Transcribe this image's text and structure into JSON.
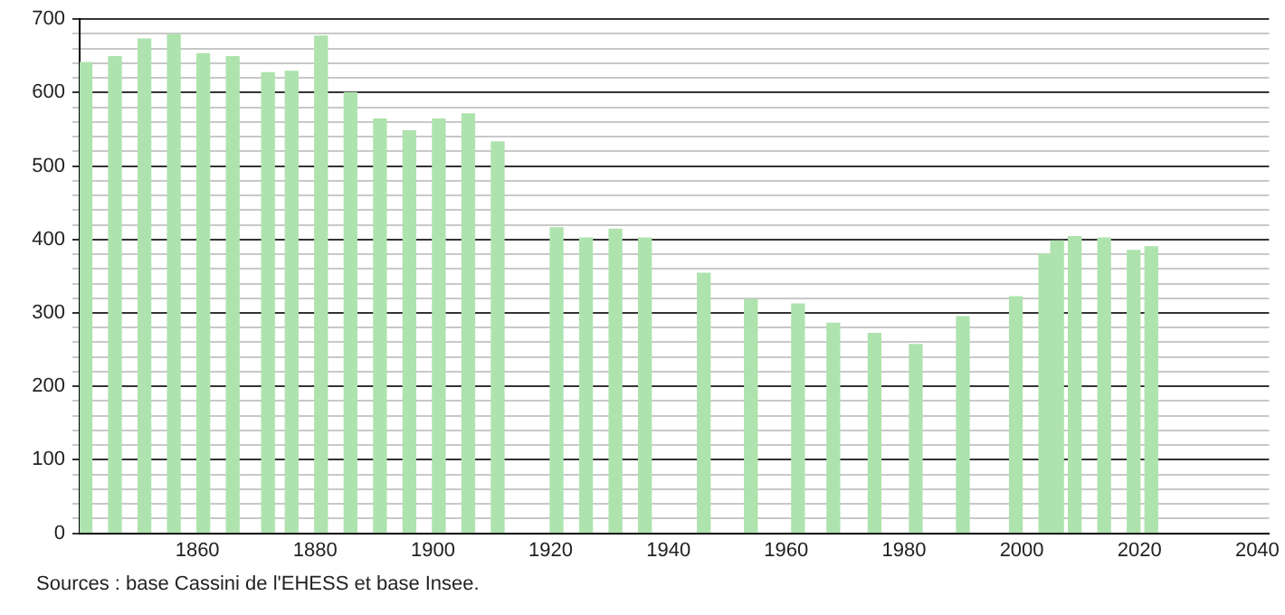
{
  "chart_data": {
    "type": "bar",
    "color": "#aee3ae",
    "x": [
      1841,
      1846,
      1851,
      1856,
      1861,
      1866,
      1872,
      1876,
      1881,
      1886,
      1891,
      1896,
      1901,
      1906,
      1911,
      1921,
      1926,
      1931,
      1936,
      1946,
      1954,
      1962,
      1968,
      1975,
      1982,
      1990,
      1999,
      2004,
      2006,
      2009,
      2014,
      2019,
      2022
    ],
    "values": [
      641,
      649,
      673,
      679,
      653,
      649,
      627,
      629,
      677,
      600,
      564,
      548,
      564,
      571,
      533,
      416,
      402,
      414,
      402,
      354,
      318,
      312,
      286,
      272,
      257,
      295,
      322,
      380,
      398,
      404,
      402,
      385,
      390
    ],
    "xlim": [
      1840,
      2042
    ],
    "xticks": [
      1860,
      1880,
      1900,
      1920,
      1940,
      1960,
      1980,
      2000,
      2020,
      2040
    ],
    "ylim": [
      0,
      700
    ],
    "yticks": [
      0,
      {
        "value": 20,
        "label": null
      },
      {
        "value": 40,
        "label": null
      },
      {
        "value": 60,
        "label": null
      },
      {
        "value": 80,
        "label": null
      },
      100,
      {
        "value": 120,
        "label": null
      },
      {
        "value": 140,
        "label": null
      },
      {
        "value": 160,
        "label": null
      },
      {
        "value": 180,
        "label": null
      },
      200,
      {
        "value": 220,
        "label": null
      },
      {
        "value": 240,
        "label": null
      },
      {
        "value": 260,
        "label": null
      },
      {
        "value": 280,
        "label": null
      },
      300,
      {
        "value": 320,
        "label": null
      },
      {
        "value": 340,
        "label": null
      },
      {
        "value": 360,
        "label": null
      },
      {
        "value": 380,
        "label": null
      },
      400,
      {
        "value": 420,
        "label": null
      },
      {
        "value": 440,
        "label": null
      },
      {
        "value": 460,
        "label": null
      },
      {
        "value": 480,
        "label": null
      },
      500,
      {
        "value": 520,
        "label": null
      },
      {
        "value": 540,
        "label": null
      },
      {
        "value": 560,
        "label": null
      },
      {
        "value": 580,
        "label": null
      },
      600,
      {
        "value": 620,
        "label": null
      },
      {
        "value": 640,
        "label": null
      },
      {
        "value": 660,
        "label": null
      },
      {
        "value": 680,
        "label": null
      },
      700
    ],
    "grid": "y",
    "annotations": [
      "Sources : base Cassini de l'EHESS et base Insee."
    ]
  }
}
